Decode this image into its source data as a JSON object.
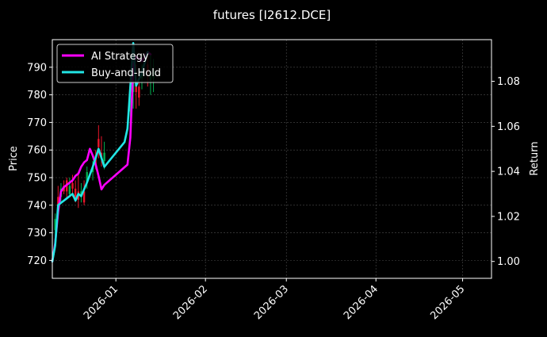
{
  "chart_data": {
    "type": "line",
    "title": "futures [I2612.DCE]",
    "xlabel": "",
    "ylabel_left": "Price",
    "ylabel_right": "Return",
    "x_range": [
      "2025-12-10",
      "2026-05-11"
    ],
    "ylim_left": [
      713.5,
      800
    ],
    "ylim_right": [
      0.9925,
      1.0985
    ],
    "x_ticks": [
      "2026-01",
      "2026-02",
      "2026-03",
      "2026-04",
      "2026-05"
    ],
    "y_ticks_left": [
      720,
      730,
      740,
      750,
      760,
      770,
      780,
      790
    ],
    "y_ticks_right": [
      "1.00",
      "1.02",
      "1.04",
      "1.06",
      "1.08"
    ],
    "grid": true,
    "legend_position": "top-left",
    "colors": {
      "background": "#000000",
      "ai_strategy": "#ff00ff",
      "buy_and_hold": "#22e5e5",
      "candle_up": "#00b050",
      "candle_down": "#e8152a",
      "grid": "#4d4d4d",
      "axis": "#ffffff"
    },
    "series": [
      {
        "name": "AI Strategy",
        "axis": "right",
        "points": [
          {
            "x": "2025-12-10",
            "y": 1.0
          },
          {
            "x": "2025-12-11",
            "y": 1.008
          },
          {
            "x": "2025-12-12",
            "y": 1.022
          },
          {
            "x": "2025-12-13",
            "y": 1.031
          },
          {
            "x": "2025-12-14",
            "y": 1.033
          },
          {
            "x": "2025-12-16",
            "y": 1.035
          },
          {
            "x": "2025-12-17",
            "y": 1.036
          },
          {
            "x": "2025-12-18",
            "y": 1.038
          },
          {
            "x": "2025-12-19",
            "y": 1.039
          },
          {
            "x": "2025-12-20",
            "y": 1.042
          },
          {
            "x": "2025-12-21",
            "y": 1.044
          },
          {
            "x": "2025-12-22",
            "y": 1.045
          },
          {
            "x": "2025-12-23",
            "y": 1.05
          },
          {
            "x": "2025-12-24",
            "y": 1.047
          },
          {
            "x": "2025-12-25",
            "y": 1.043
          },
          {
            "x": "2025-12-26",
            "y": 1.038
          },
          {
            "x": "2025-12-27",
            "y": 1.032
          },
          {
            "x": "2025-12-28",
            "y": 1.034
          },
          {
            "x": "2026-01-05",
            "y": 1.043
          },
          {
            "x": "2026-01-06",
            "y": 1.055
          },
          {
            "x": "2026-01-07",
            "y": 1.087
          },
          {
            "x": "2026-01-08",
            "y": 1.091
          },
          {
            "x": "2026-01-10",
            "y": 1.089
          },
          {
            "x": "2026-01-12",
            "y": 1.093
          },
          {
            "x": "2026-01-13",
            "y": 1.092
          }
        ]
      },
      {
        "name": "Buy-and-Hold",
        "axis": "right",
        "points": [
          {
            "x": "2025-12-10",
            "y": 1.0
          },
          {
            "x": "2025-12-11",
            "y": 1.007
          },
          {
            "x": "2025-12-12",
            "y": 1.025
          },
          {
            "x": "2025-12-13",
            "y": 1.026
          },
          {
            "x": "2025-12-15",
            "y": 1.028
          },
          {
            "x": "2025-12-17",
            "y": 1.03
          },
          {
            "x": "2025-12-18",
            "y": 1.027
          },
          {
            "x": "2025-12-19",
            "y": 1.03
          },
          {
            "x": "2025-12-20",
            "y": 1.029
          },
          {
            "x": "2025-12-22",
            "y": 1.035
          },
          {
            "x": "2025-12-24",
            "y": 1.042
          },
          {
            "x": "2025-12-26",
            "y": 1.05
          },
          {
            "x": "2025-12-28",
            "y": 1.042
          },
          {
            "x": "2026-01-04",
            "y": 1.053
          },
          {
            "x": "2026-01-05",
            "y": 1.059
          },
          {
            "x": "2026-01-07",
            "y": 1.097
          },
          {
            "x": "2026-01-08",
            "y": 1.078
          },
          {
            "x": "2026-01-10",
            "y": 1.084
          },
          {
            "x": "2026-01-12",
            "y": 1.093
          }
        ]
      }
    ],
    "candles": {
      "axis": "left",
      "bars": [
        {
          "x": "2025-12-11",
          "open": 731,
          "close": 735,
          "low": 728,
          "high": 737
        },
        {
          "x": "2025-12-12",
          "open": 743,
          "close": 737,
          "low": 735,
          "high": 747
        },
        {
          "x": "2025-12-13",
          "open": 743,
          "close": 746,
          "low": 741,
          "high": 748
        },
        {
          "x": "2025-12-14",
          "open": 747,
          "close": 745,
          "low": 744,
          "high": 749
        },
        {
          "x": "2025-12-15",
          "open": 749,
          "close": 745,
          "low": 742,
          "high": 750
        },
        {
          "x": "2025-12-16",
          "open": 744,
          "close": 747,
          "low": 743,
          "high": 750
        },
        {
          "x": "2025-12-17",
          "open": 748,
          "close": 746,
          "low": 743,
          "high": 751
        },
        {
          "x": "2025-12-18",
          "open": 746,
          "close": 743,
          "low": 741,
          "high": 749
        },
        {
          "x": "2025-12-19",
          "open": 745,
          "close": 742,
          "low": 739,
          "high": 751
        },
        {
          "x": "2025-12-20",
          "open": 743,
          "close": 745,
          "low": 741,
          "high": 748
        },
        {
          "x": "2025-12-21",
          "open": 745,
          "close": 741,
          "low": 740,
          "high": 749
        },
        {
          "x": "2025-12-22",
          "open": 748,
          "close": 752,
          "low": 746,
          "high": 754
        },
        {
          "x": "2025-12-24",
          "open": 752,
          "close": 754,
          "low": 749,
          "high": 756
        },
        {
          "x": "2025-12-25",
          "open": 758,
          "close": 755,
          "low": 753,
          "high": 760
        },
        {
          "x": "2025-12-26",
          "open": 764,
          "close": 761,
          "low": 757,
          "high": 769
        },
        {
          "x": "2025-12-27",
          "open": 759,
          "close": 757,
          "low": 754,
          "high": 765
        },
        {
          "x": "2025-12-28",
          "open": 756,
          "close": 759,
          "low": 753,
          "high": 763
        },
        {
          "x": "2026-01-06",
          "open": 774,
          "close": 778,
          "low": 769,
          "high": 784
        },
        {
          "x": "2026-01-07",
          "open": 781,
          "close": 785,
          "low": 775,
          "high": 793
        },
        {
          "x": "2026-01-08",
          "open": 784,
          "close": 781,
          "low": 775,
          "high": 791
        },
        {
          "x": "2026-01-09",
          "open": 783,
          "close": 779,
          "low": 776,
          "high": 787
        },
        {
          "x": "2026-01-10",
          "open": 786,
          "close": 789,
          "low": 782,
          "high": 791
        },
        {
          "x": "2026-01-12",
          "open": 791,
          "close": 788,
          "low": 783,
          "high": 795
        },
        {
          "x": "2026-01-13",
          "open": 785,
          "close": 788,
          "low": 780,
          "high": 795
        },
        {
          "x": "2026-01-14",
          "open": 786,
          "close": 789,
          "low": 781,
          "high": 793
        }
      ]
    }
  }
}
